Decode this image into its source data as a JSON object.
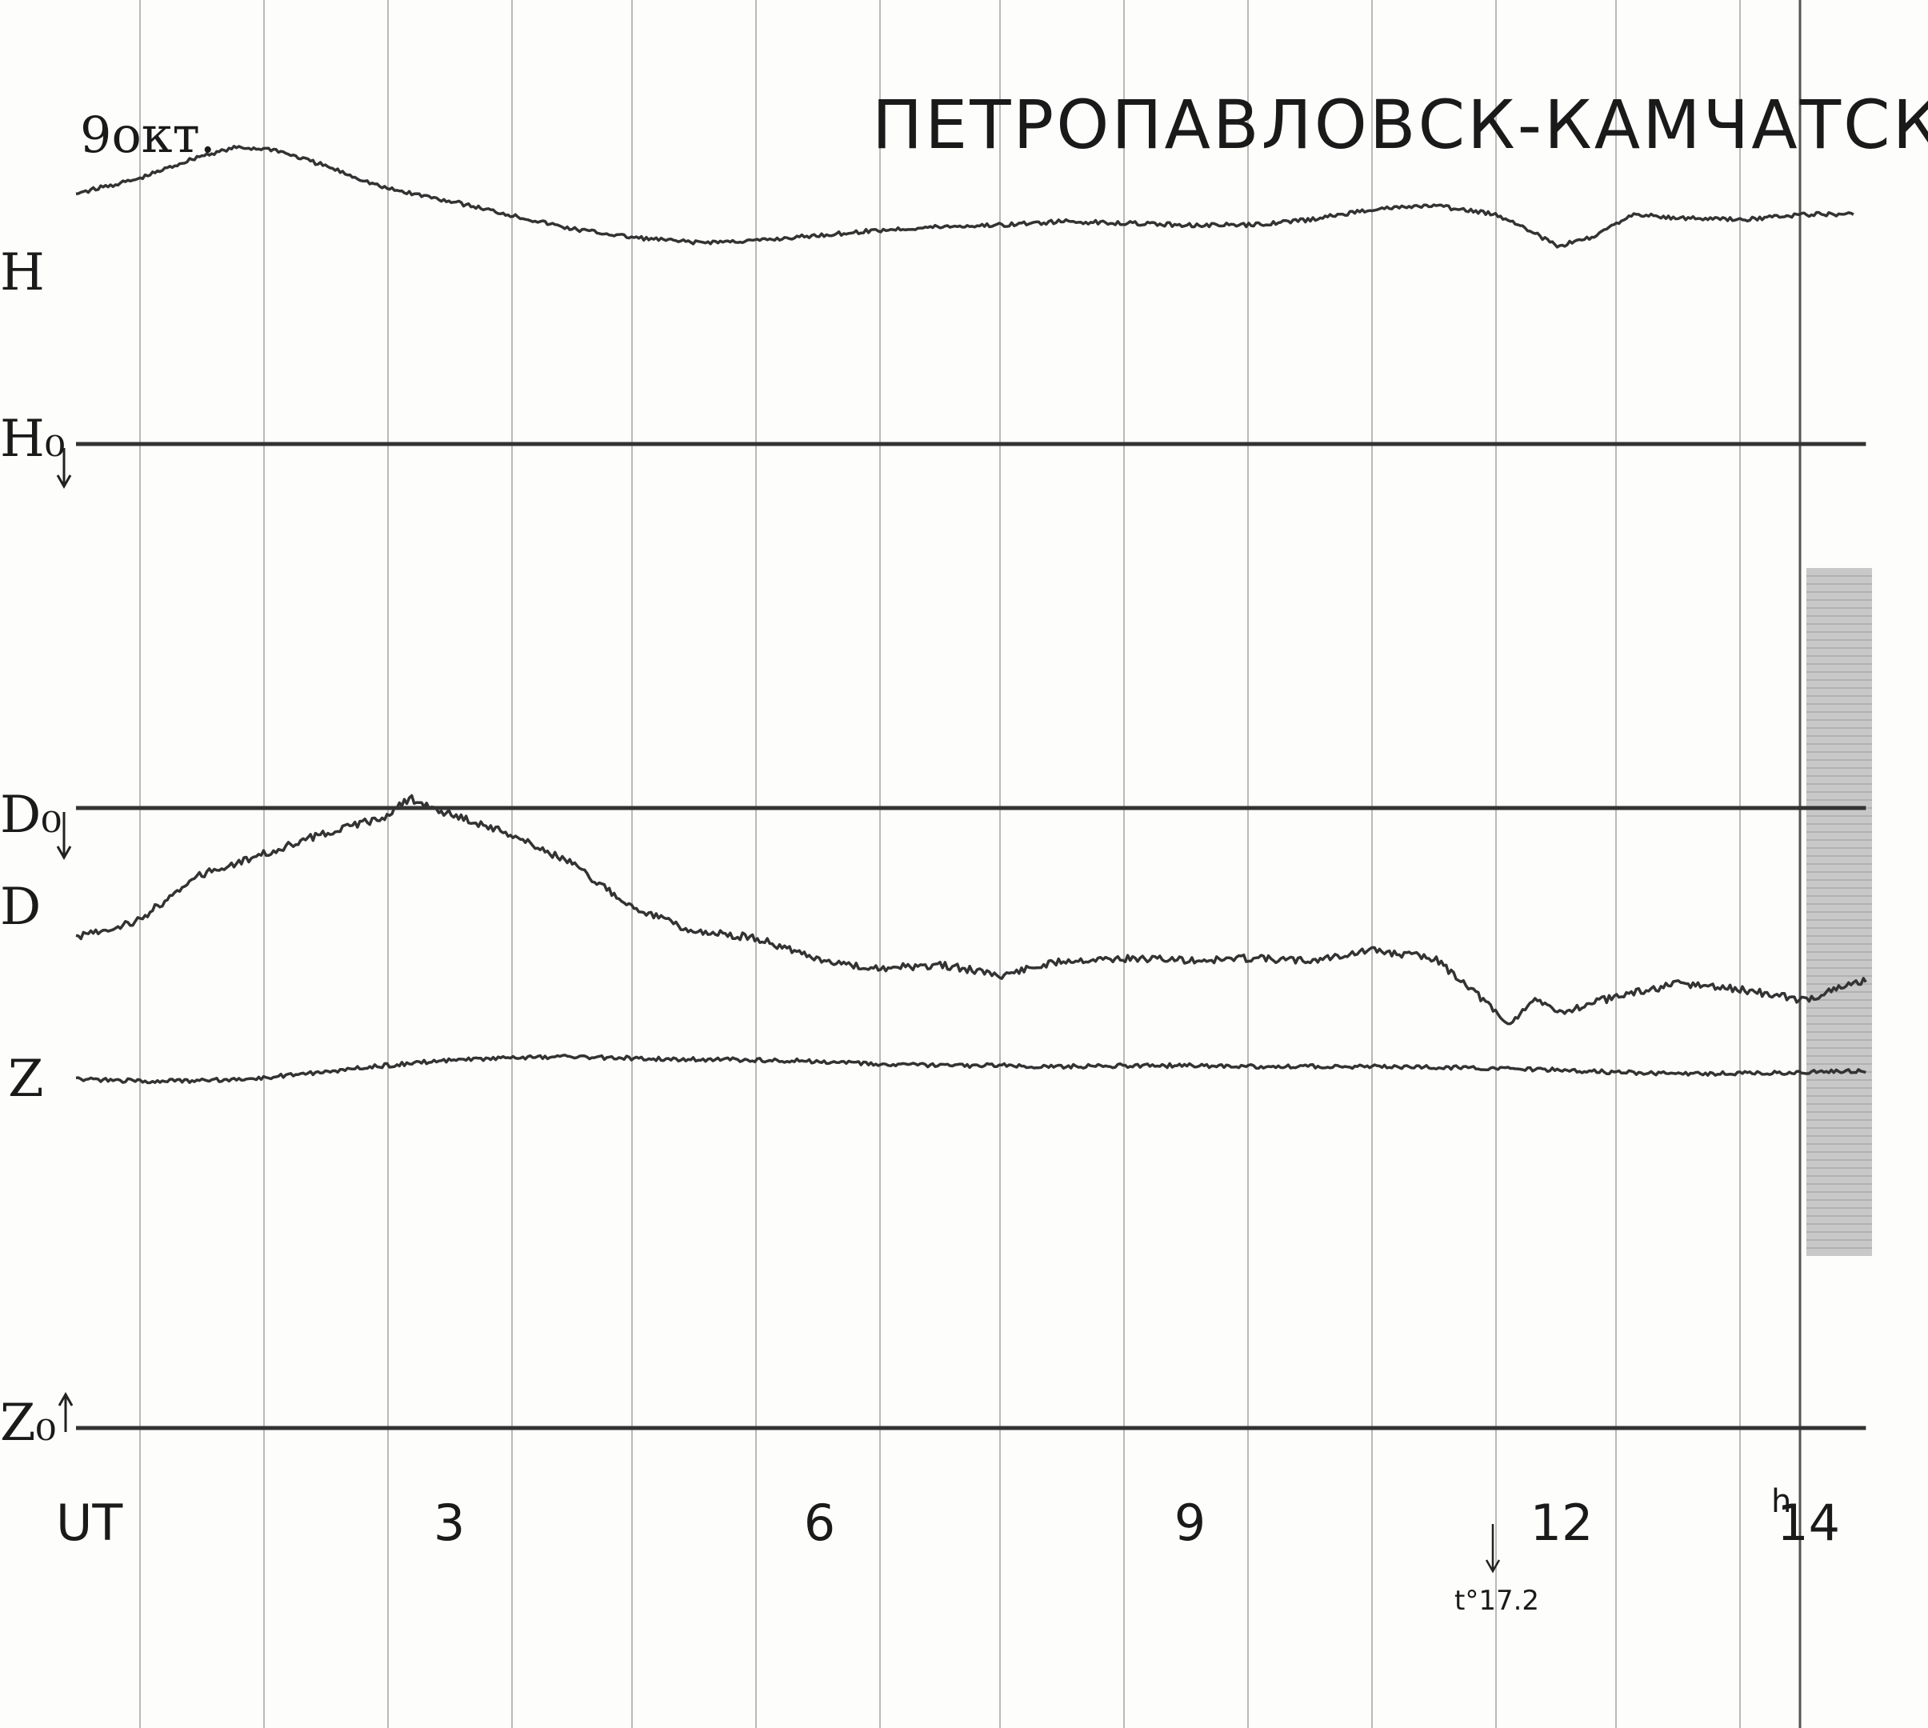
{
  "header": {
    "date": "9окт.",
    "station": "ПЕТРОПАВЛОВСК-КАМЧАТСКИЙ I"
  },
  "channel_labels": {
    "H": "H",
    "H0": "H₀",
    "D0": "D₀",
    "D": "D",
    "Z": "Z",
    "Z0": "Z₀"
  },
  "axis": {
    "label": "UT",
    "last_tick_suffix": "h"
  },
  "temperature_note": "t°17.2",
  "colors": {
    "trace": "#333333",
    "grid": "#b9b9b9",
    "paper": "#fdfdfc",
    "strip": "#c8c8c8"
  },
  "chart_data": {
    "type": "line",
    "title": "ПЕТРОПАВЛОВСК-КАМЧАТСКИЙ I",
    "xlabel": "UT",
    "ylabel": "",
    "x_ticks": [
      3,
      6,
      9,
      12,
      14
    ],
    "x_tick_labels": [
      "3",
      "6",
      "9",
      "12",
      "14"
    ],
    "xlim": [
      0,
      14.5
    ],
    "grid": true,
    "series": [
      {
        "name": "H",
        "x": [
          0,
          0.5,
          1.0,
          1.3,
          1.6,
          2.0,
          2.5,
          3.0,
          3.5,
          4.0,
          4.5,
          5.0,
          5.5,
          6.0,
          6.5,
          7.0,
          7.5,
          8.0,
          8.5,
          9.0,
          9.5,
          10.0,
          10.5,
          11.0,
          11.5,
          11.7,
          12.0,
          12.3,
          12.6,
          13.0,
          13.5,
          14.0,
          14.4
        ],
        "y": [
          0.72,
          0.8,
          0.93,
          0.98,
          0.97,
          0.88,
          0.75,
          0.68,
          0.6,
          0.52,
          0.47,
          0.44,
          0.45,
          0.48,
          0.51,
          0.53,
          0.54,
          0.56,
          0.55,
          0.54,
          0.54,
          0.57,
          0.63,
          0.65,
          0.6,
          0.54,
          0.42,
          0.47,
          0.6,
          0.58,
          0.57,
          0.6,
          0.6
        ]
      },
      {
        "name": "H₀",
        "x": [
          0,
          14.5
        ],
        "y": [
          0,
          0
        ]
      },
      {
        "name": "D₀",
        "x": [
          0,
          14.5
        ],
        "y": [
          0,
          0
        ]
      },
      {
        "name": "D",
        "x": [
          0,
          0.5,
          1.0,
          1.5,
          2.0,
          2.5,
          2.7,
          3.0,
          3.5,
          4.0,
          4.5,
          5.0,
          5.5,
          6.0,
          6.5,
          7.0,
          7.5,
          8.0,
          8.5,
          9.0,
          9.5,
          10.0,
          10.5,
          11.0,
          11.3,
          11.6,
          11.8,
          12.0,
          12.5,
          13.0,
          13.5,
          14.0,
          14.5
        ],
        "y": [
          0.3,
          0.38,
          0.6,
          0.7,
          0.8,
          0.88,
          0.97,
          0.9,
          0.8,
          0.66,
          0.45,
          0.33,
          0.3,
          0.2,
          0.15,
          0.17,
          0.12,
          0.19,
          0.2,
          0.19,
          0.2,
          0.19,
          0.24,
          0.2,
          0.06,
          -0.12,
          0.0,
          -0.06,
          0.02,
          0.08,
          0.05,
          0.0,
          0.1
        ]
      },
      {
        "name": "Z",
        "x": [
          0,
          0.5,
          1.0,
          1.5,
          2.0,
          2.5,
          3.0,
          3.5,
          4.0,
          4.5,
          5.0,
          5.5,
          6.0,
          6.5,
          7.0,
          7.5,
          8.0,
          8.5,
          9.0,
          9.5,
          10.0,
          10.5,
          11.0,
          11.5,
          12.0,
          12.5,
          13.0,
          13.5,
          14.0,
          14.5
        ],
        "y": [
          0.3,
          0.25,
          0.25,
          0.32,
          0.45,
          0.6,
          0.72,
          0.78,
          0.8,
          0.77,
          0.74,
          0.73,
          0.7,
          0.62,
          0.6,
          0.6,
          0.58,
          0.6,
          0.6,
          0.58,
          0.58,
          0.58,
          0.56,
          0.54,
          0.5,
          0.45,
          0.41,
          0.42,
          0.45,
          0.48
        ]
      },
      {
        "name": "Z₀",
        "x": [
          0,
          14.5
        ],
        "y": [
          0,
          0
        ]
      }
    ]
  }
}
